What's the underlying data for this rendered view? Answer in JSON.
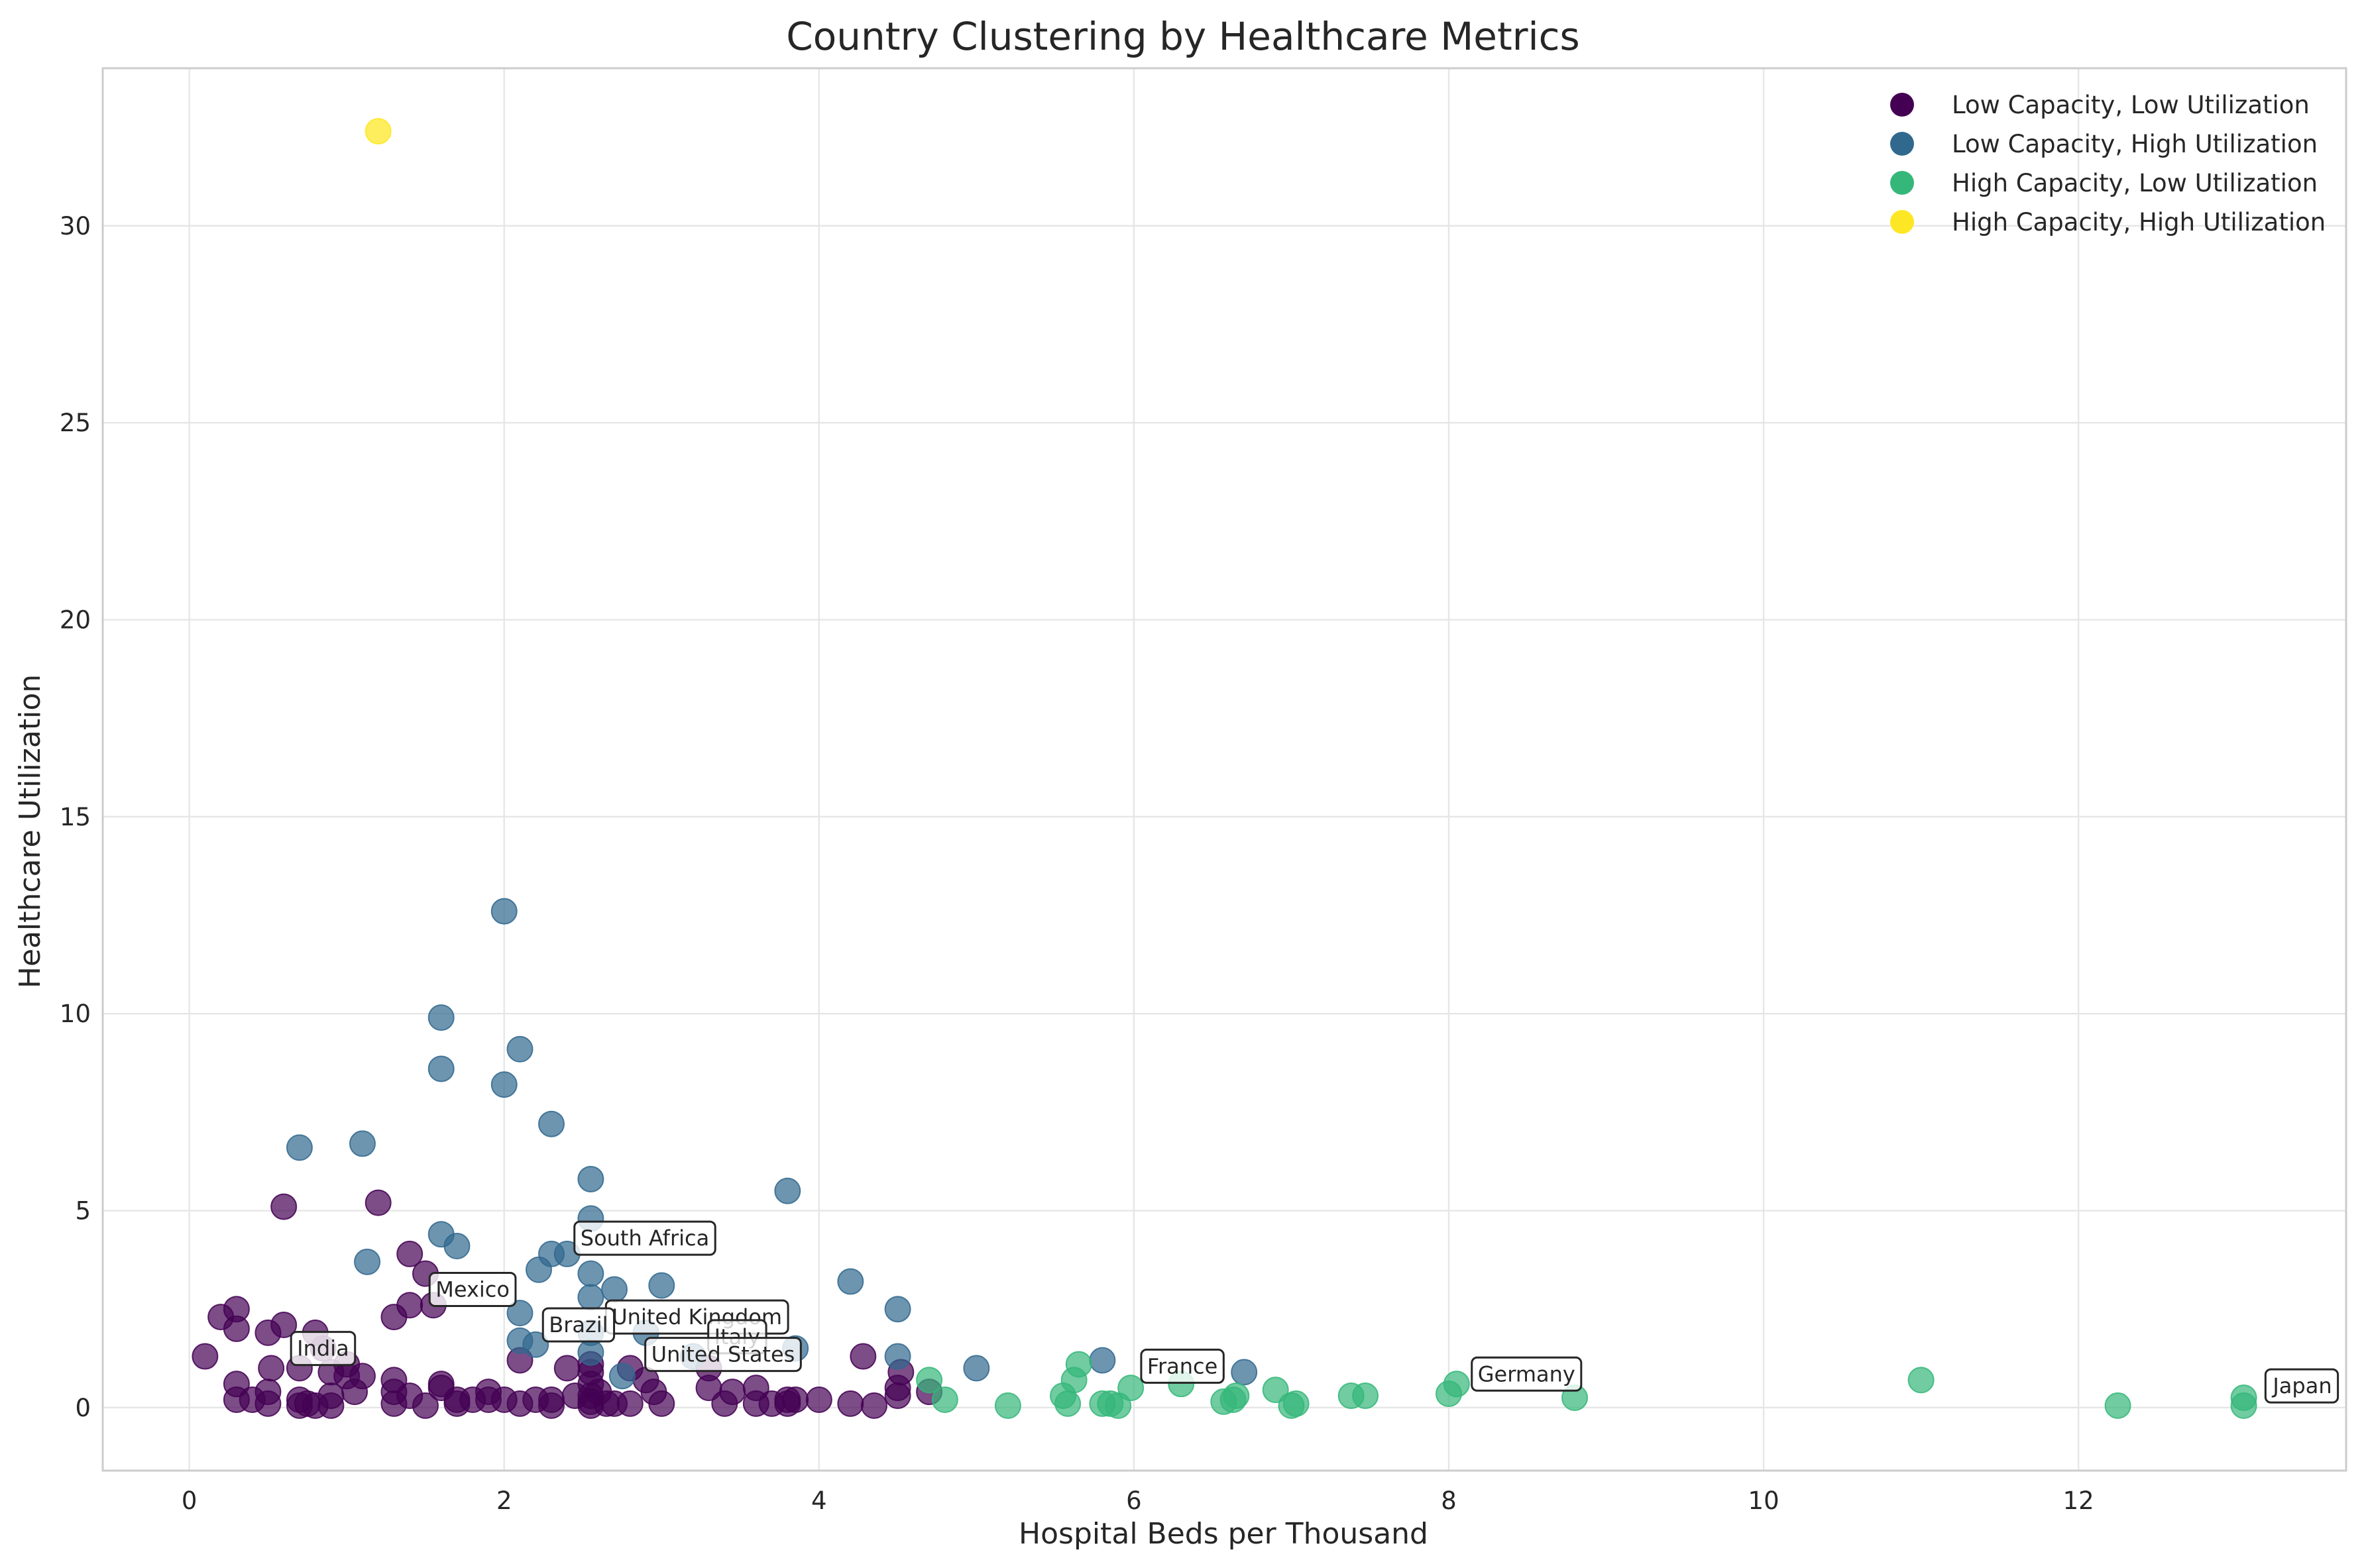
{
  "chart_data": {
    "type": "scatter",
    "title": "Country Clustering by Healthcare Metrics",
    "xlabel": "Hospital Beds per Thousand",
    "ylabel": "Healthcare Utilization",
    "xlim": [
      -0.55,
      13.7
    ],
    "ylim": [
      -1.6,
      34.0
    ],
    "xticks": [
      0,
      2,
      4,
      6,
      8,
      10,
      12
    ],
    "yticks": [
      0,
      5,
      10,
      15,
      20,
      25,
      30
    ],
    "grid": true,
    "legend_position": "top-right",
    "series": [
      {
        "name": "Low Capacity, Low Utilization",
        "color": "#440154",
        "points": [
          [
            0.1,
            1.3
          ],
          [
            0.2,
            2.3
          ],
          [
            0.3,
            2.5
          ],
          [
            0.3,
            2.0
          ],
          [
            0.3,
            0.6
          ],
          [
            0.3,
            0.2
          ],
          [
            0.4,
            0.2
          ],
          [
            0.5,
            0.1
          ],
          [
            0.5,
            0.4
          ],
          [
            0.5,
            1.9
          ],
          [
            0.52,
            1.0
          ],
          [
            0.6,
            2.1
          ],
          [
            0.6,
            5.1
          ],
          [
            0.7,
            0.2
          ],
          [
            0.7,
            0.05
          ],
          [
            0.7,
            1.0
          ],
          [
            0.75,
            0.1
          ],
          [
            0.8,
            0.05
          ],
          [
            0.8,
            1.9
          ],
          [
            0.85,
            1.5
          ],
          [
            0.9,
            0.05
          ],
          [
            0.9,
            0.3
          ],
          [
            0.9,
            0.9
          ],
          [
            1.0,
            1.1
          ],
          [
            1.0,
            0.8
          ],
          [
            1.05,
            0.4
          ],
          [
            1.1,
            0.8
          ],
          [
            1.2,
            5.2
          ],
          [
            1.3,
            0.1
          ],
          [
            1.3,
            0.4
          ],
          [
            1.3,
            0.7
          ],
          [
            1.3,
            2.3
          ],
          [
            1.4,
            2.6
          ],
          [
            1.4,
            3.9
          ],
          [
            1.4,
            0.3
          ],
          [
            1.5,
            0.05
          ],
          [
            1.5,
            3.4
          ],
          [
            1.55,
            2.6
          ],
          [
            1.6,
            0.6
          ],
          [
            1.6,
            0.5
          ],
          [
            1.7,
            0.2
          ],
          [
            1.7,
            0.1
          ],
          [
            1.8,
            0.2
          ],
          [
            1.9,
            0.4
          ],
          [
            1.9,
            0.2
          ],
          [
            2.0,
            0.2
          ],
          [
            2.1,
            0.1
          ],
          [
            2.1,
            1.2
          ],
          [
            2.2,
            0.2
          ],
          [
            2.3,
            0.05
          ],
          [
            2.3,
            0.2
          ],
          [
            2.4,
            1.0
          ],
          [
            2.45,
            0.3
          ],
          [
            2.55,
            0.05
          ],
          [
            2.55,
            0.15
          ],
          [
            2.55,
            0.3
          ],
          [
            2.55,
            0.6
          ],
          [
            2.55,
            0.9
          ],
          [
            2.55,
            1.1
          ],
          [
            2.6,
            0.4
          ],
          [
            2.65,
            0.1
          ],
          [
            2.7,
            0.1
          ],
          [
            2.8,
            0.1
          ],
          [
            2.8,
            1.0
          ],
          [
            2.9,
            0.7
          ],
          [
            2.95,
            0.4
          ],
          [
            3.0,
            0.1
          ],
          [
            3.3,
            0.5
          ],
          [
            3.3,
            1.0
          ],
          [
            3.4,
            0.1
          ],
          [
            3.45,
            0.4
          ],
          [
            3.6,
            0.1
          ],
          [
            3.6,
            0.5
          ],
          [
            3.7,
            0.1
          ],
          [
            3.8,
            0.2
          ],
          [
            3.8,
            0.1
          ],
          [
            3.85,
            0.2
          ],
          [
            4.0,
            0.2
          ],
          [
            4.2,
            0.1
          ],
          [
            4.28,
            1.3
          ],
          [
            4.35,
            0.05
          ],
          [
            4.5,
            0.3
          ],
          [
            4.5,
            0.5
          ],
          [
            4.52,
            0.9
          ],
          [
            4.7,
            0.4
          ]
        ]
      },
      {
        "name": "Low Capacity, High Utilization",
        "color": "#31688e",
        "points": [
          [
            0.7,
            6.6
          ],
          [
            1.1,
            6.7
          ],
          [
            1.13,
            3.7
          ],
          [
            1.6,
            9.9
          ],
          [
            1.6,
            8.6
          ],
          [
            1.6,
            4.4
          ],
          [
            1.7,
            4.1
          ],
          [
            2.0,
            12.6
          ],
          [
            2.0,
            8.2
          ],
          [
            2.1,
            9.1
          ],
          [
            2.1,
            2.4
          ],
          [
            2.1,
            1.7
          ],
          [
            2.2,
            1.6
          ],
          [
            2.22,
            3.5
          ],
          [
            2.3,
            3.9
          ],
          [
            2.3,
            7.2
          ],
          [
            2.4,
            3.9
          ],
          [
            2.55,
            5.8
          ],
          [
            2.55,
            4.8
          ],
          [
            2.55,
            3.4
          ],
          [
            2.55,
            2.8
          ],
          [
            2.55,
            1.9
          ],
          [
            2.55,
            1.4
          ],
          [
            2.7,
            3.0
          ],
          [
            2.75,
            0.8
          ],
          [
            2.9,
            1.9
          ],
          [
            3.0,
            3.1
          ],
          [
            3.2,
            1.3
          ],
          [
            3.8,
            5.5
          ],
          [
            3.85,
            1.5
          ],
          [
            4.2,
            3.2
          ],
          [
            4.5,
            2.5
          ],
          [
            4.5,
            1.3
          ],
          [
            5.0,
            1.0
          ],
          [
            5.8,
            1.2
          ],
          [
            6.7,
            0.9
          ]
        ]
      },
      {
        "name": "High Capacity, Low Utilization",
        "color": "#35b779",
        "points": [
          [
            4.7,
            0.7
          ],
          [
            4.8,
            0.2
          ],
          [
            5.2,
            0.05
          ],
          [
            5.55,
            0.3
          ],
          [
            5.58,
            0.1
          ],
          [
            5.62,
            0.7
          ],
          [
            5.65,
            1.1
          ],
          [
            5.8,
            0.1
          ],
          [
            5.85,
            0.1
          ],
          [
            5.9,
            0.05
          ],
          [
            5.98,
            0.5
          ],
          [
            6.3,
            0.6
          ],
          [
            6.57,
            0.15
          ],
          [
            6.63,
            0.2
          ],
          [
            6.65,
            0.3
          ],
          [
            6.9,
            0.45
          ],
          [
            7.0,
            0.05
          ],
          [
            7.03,
            0.1
          ],
          [
            7.38,
            0.3
          ],
          [
            7.47,
            0.3
          ],
          [
            8.0,
            0.35
          ],
          [
            8.05,
            0.6
          ],
          [
            8.8,
            0.25
          ],
          [
            11.0,
            0.7
          ],
          [
            12.25,
            0.05
          ],
          [
            13.05,
            0.05
          ],
          [
            13.05,
            0.25
          ]
        ]
      },
      {
        "name": "High Capacity, High Utilization",
        "color": "#fde725",
        "points": [
          [
            1.2,
            32.4
          ]
        ]
      }
    ],
    "annotations": [
      {
        "text": "South Africa",
        "x": 2.4,
        "y": 4.3
      },
      {
        "text": "Mexico",
        "x": 1.48,
        "y": 3.0
      },
      {
        "text": "United Kingdom",
        "x": 2.6,
        "y": 2.3
      },
      {
        "text": "Brazil",
        "x": 2.2,
        "y": 2.1
      },
      {
        "text": "India",
        "x": 0.6,
        "y": 1.5
      },
      {
        "text": "Italy",
        "x": 3.25,
        "y": 1.8
      },
      {
        "text": "United States",
        "x": 2.85,
        "y": 1.35
      },
      {
        "text": "France",
        "x": 6.0,
        "y": 1.05
      },
      {
        "text": "Germany",
        "x": 8.1,
        "y": 0.85
      },
      {
        "text": "Japan",
        "x": 13.15,
        "y": 0.55
      }
    ]
  }
}
